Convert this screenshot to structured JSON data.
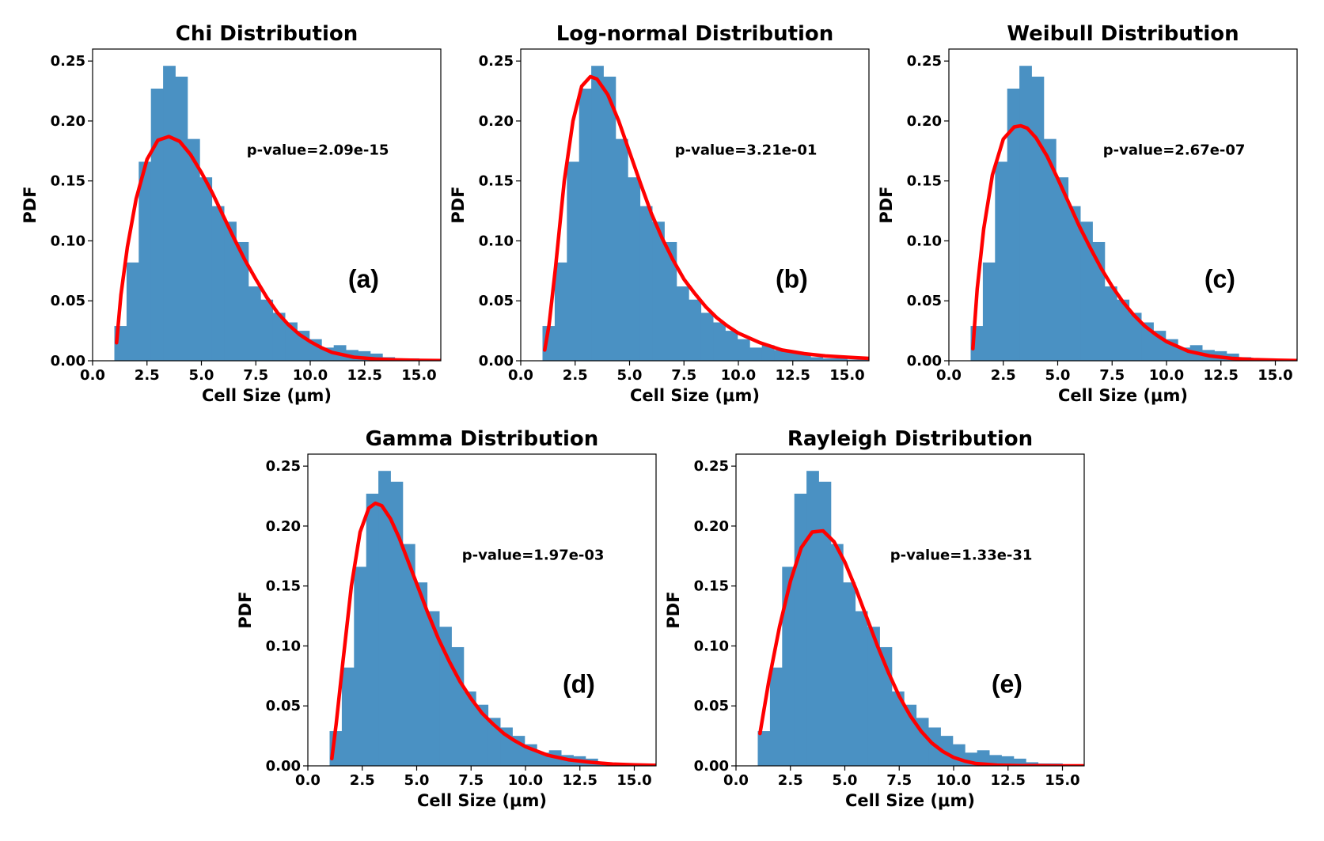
{
  "figure": {
    "xticks": [
      "0.0",
      "2.5",
      "5.0",
      "7.5",
      "10.0",
      "12.5",
      "15.0"
    ],
    "yticks": [
      "0.00",
      "0.05",
      "0.10",
      "0.15",
      "0.20",
      "0.25"
    ]
  },
  "chart_data": [
    {
      "type": "bar",
      "title": "Chi Distribution",
      "xlabel": "Cell Size (μm)",
      "ylabel": "PDF",
      "xlim": [
        0,
        16
      ],
      "ylim": [
        0,
        0.26
      ],
      "annotation": "p-value=2.09e-15",
      "panel_label": "(a)",
      "bin_edges": [
        1.0,
        1.56,
        2.12,
        2.68,
        3.24,
        3.8,
        4.36,
        4.92,
        5.48,
        6.04,
        6.6,
        7.16,
        7.72,
        8.28,
        8.84,
        9.4,
        9.96,
        10.52,
        11.08,
        11.64,
        12.2,
        12.76,
        13.32,
        13.88,
        14.44,
        15.0,
        15.56,
        16.0
      ],
      "values": [
        0.029,
        0.082,
        0.166,
        0.227,
        0.246,
        0.237,
        0.185,
        0.153,
        0.129,
        0.116,
        0.099,
        0.062,
        0.051,
        0.04,
        0.032,
        0.025,
        0.018,
        0.011,
        0.013,
        0.009,
        0.008,
        0.006,
        0.003,
        0.002,
        0.002,
        0.001,
        0.001
      ],
      "series": [
        {
          "name": "",
          "color": "#ff0000",
          "x": [
            1.1,
            1.3,
            1.6,
            2.0,
            2.5,
            3.0,
            3.5,
            4.0,
            4.5,
            5.0,
            5.5,
            6.0,
            6.5,
            7.0,
            7.5,
            8.0,
            8.5,
            9.0,
            9.5,
            10.0,
            10.5,
            11.0,
            11.5,
            12.0,
            13.0,
            14.0,
            15.0,
            16.0
          ],
          "y": [
            0.015,
            0.055,
            0.095,
            0.135,
            0.168,
            0.184,
            0.187,
            0.183,
            0.172,
            0.157,
            0.14,
            0.121,
            0.102,
            0.084,
            0.068,
            0.053,
            0.04,
            0.03,
            0.022,
            0.016,
            0.011,
            0.007,
            0.005,
            0.003,
            0.0015,
            0.0007,
            0.0003,
            0.0001
          ]
        }
      ]
    },
    {
      "type": "bar",
      "title": "Log-normal Distribution",
      "xlabel": "Cell Size (μm)",
      "ylabel": "PDF",
      "xlim": [
        0,
        16
      ],
      "ylim": [
        0,
        0.26
      ],
      "annotation": "p-value=3.21e-01",
      "panel_label": "(b)",
      "bin_edges": [
        1.0,
        1.56,
        2.12,
        2.68,
        3.24,
        3.8,
        4.36,
        4.92,
        5.48,
        6.04,
        6.6,
        7.16,
        7.72,
        8.28,
        8.84,
        9.4,
        9.96,
        10.52,
        11.08,
        11.64,
        12.2,
        12.76,
        13.32,
        13.88,
        14.44,
        15.0,
        15.56,
        16.0
      ],
      "values": [
        0.029,
        0.082,
        0.166,
        0.227,
        0.246,
        0.237,
        0.185,
        0.153,
        0.129,
        0.116,
        0.099,
        0.062,
        0.051,
        0.04,
        0.032,
        0.025,
        0.018,
        0.011,
        0.013,
        0.009,
        0.008,
        0.006,
        0.003,
        0.002,
        0.002,
        0.001,
        0.001
      ],
      "series": [
        {
          "name": "",
          "color": "#ff0000",
          "x": [
            1.1,
            1.3,
            1.6,
            2.0,
            2.4,
            2.8,
            3.2,
            3.5,
            4.0,
            4.5,
            5.0,
            5.5,
            6.0,
            6.5,
            7.0,
            7.5,
            8.0,
            8.5,
            9.0,
            9.5,
            10.0,
            11.0,
            12.0,
            13.0,
            14.0,
            15.0,
            16.0
          ],
          "y": [
            0.009,
            0.03,
            0.078,
            0.15,
            0.2,
            0.229,
            0.237,
            0.235,
            0.222,
            0.2,
            0.174,
            0.148,
            0.123,
            0.102,
            0.084,
            0.068,
            0.056,
            0.045,
            0.036,
            0.029,
            0.023,
            0.015,
            0.009,
            0.006,
            0.004,
            0.003,
            0.002
          ]
        }
      ]
    },
    {
      "type": "bar",
      "title": "Weibull Distribution",
      "xlabel": "Cell Size (μm)",
      "ylabel": "PDF",
      "xlim": [
        0,
        16
      ],
      "ylim": [
        0,
        0.26
      ],
      "annotation": "p-value=2.67e-07",
      "panel_label": "(c)",
      "bin_edges": [
        1.0,
        1.56,
        2.12,
        2.68,
        3.24,
        3.8,
        4.36,
        4.92,
        5.48,
        6.04,
        6.6,
        7.16,
        7.72,
        8.28,
        8.84,
        9.4,
        9.96,
        10.52,
        11.08,
        11.64,
        12.2,
        12.76,
        13.32,
        13.88,
        14.44,
        15.0,
        15.56,
        16.0
      ],
      "values": [
        0.029,
        0.082,
        0.166,
        0.227,
        0.246,
        0.237,
        0.185,
        0.153,
        0.129,
        0.116,
        0.099,
        0.062,
        0.051,
        0.04,
        0.032,
        0.025,
        0.018,
        0.011,
        0.013,
        0.009,
        0.008,
        0.006,
        0.003,
        0.002,
        0.002,
        0.001,
        0.001
      ],
      "series": [
        {
          "name": "",
          "color": "#ff0000",
          "x": [
            1.1,
            1.3,
            1.6,
            2.0,
            2.5,
            3.0,
            3.3,
            3.6,
            4.0,
            4.5,
            5.0,
            5.5,
            6.0,
            6.5,
            7.0,
            7.5,
            8.0,
            8.5,
            9.0,
            9.5,
            10.0,
            10.5,
            11.0,
            12.0,
            13.0,
            14.0,
            15.0,
            16.0
          ],
          "y": [
            0.01,
            0.06,
            0.11,
            0.155,
            0.185,
            0.195,
            0.196,
            0.194,
            0.186,
            0.171,
            0.152,
            0.132,
            0.112,
            0.094,
            0.077,
            0.062,
            0.049,
            0.038,
            0.029,
            0.022,
            0.016,
            0.012,
            0.008,
            0.004,
            0.002,
            0.001,
            0.0005,
            0.0002
          ]
        }
      ]
    },
    {
      "type": "bar",
      "title": "Gamma Distribution",
      "xlabel": "Cell Size (μm)",
      "ylabel": "PDF",
      "xlim": [
        0,
        16
      ],
      "ylim": [
        0,
        0.26
      ],
      "annotation": "p-value=1.97e-03",
      "panel_label": "(d)",
      "bin_edges": [
        1.0,
        1.56,
        2.12,
        2.68,
        3.24,
        3.8,
        4.36,
        4.92,
        5.48,
        6.04,
        6.6,
        7.16,
        7.72,
        8.28,
        8.84,
        9.4,
        9.96,
        10.52,
        11.08,
        11.64,
        12.2,
        12.76,
        13.32,
        13.88,
        14.44,
        15.0,
        15.56,
        16.0
      ],
      "values": [
        0.029,
        0.082,
        0.166,
        0.227,
        0.246,
        0.237,
        0.185,
        0.153,
        0.129,
        0.116,
        0.099,
        0.062,
        0.051,
        0.04,
        0.032,
        0.025,
        0.018,
        0.011,
        0.013,
        0.009,
        0.008,
        0.006,
        0.003,
        0.002,
        0.002,
        0.001,
        0.001
      ],
      "series": [
        {
          "name": "",
          "color": "#ff0000",
          "x": [
            1.1,
            1.3,
            1.6,
            2.0,
            2.4,
            2.8,
            3.1,
            3.4,
            3.8,
            4.2,
            4.6,
            5.0,
            5.5,
            6.0,
            6.5,
            7.0,
            7.5,
            8.0,
            8.5,
            9.0,
            9.5,
            10.0,
            11.0,
            12.0,
            13.0,
            14.0,
            15.0,
            16.0
          ],
          "y": [
            0.006,
            0.035,
            0.085,
            0.15,
            0.195,
            0.215,
            0.219,
            0.217,
            0.206,
            0.19,
            0.171,
            0.152,
            0.128,
            0.106,
            0.087,
            0.07,
            0.056,
            0.044,
            0.035,
            0.027,
            0.021,
            0.016,
            0.009,
            0.005,
            0.003,
            0.0015,
            0.0008,
            0.0004
          ]
        }
      ]
    },
    {
      "type": "bar",
      "title": "Rayleigh Distribution",
      "xlabel": "Cell Size (μm)",
      "ylabel": "PDF",
      "xlim": [
        0,
        16
      ],
      "ylim": [
        0,
        0.26
      ],
      "annotation": "p-value=1.33e-31",
      "panel_label": "(e)",
      "bin_edges": [
        1.0,
        1.56,
        2.12,
        2.68,
        3.24,
        3.8,
        4.36,
        4.92,
        5.48,
        6.04,
        6.6,
        7.16,
        7.72,
        8.28,
        8.84,
        9.4,
        9.96,
        10.52,
        11.08,
        11.64,
        12.2,
        12.76,
        13.32,
        13.88,
        14.44,
        15.0,
        15.56,
        16.0
      ],
      "values": [
        0.029,
        0.082,
        0.166,
        0.227,
        0.246,
        0.237,
        0.185,
        0.153,
        0.129,
        0.116,
        0.099,
        0.062,
        0.051,
        0.04,
        0.032,
        0.025,
        0.018,
        0.011,
        0.013,
        0.009,
        0.008,
        0.006,
        0.003,
        0.002,
        0.002,
        0.001,
        0.001
      ],
      "series": [
        {
          "name": "",
          "color": "#ff0000",
          "x": [
            1.1,
            1.5,
            2.0,
            2.5,
            3.0,
            3.5,
            4.0,
            4.5,
            5.0,
            5.5,
            6.0,
            6.5,
            7.0,
            7.5,
            8.0,
            8.5,
            9.0,
            9.5,
            10.0,
            10.5,
            11.0,
            12.0,
            13.0,
            14.0,
            15.0,
            16.0
          ],
          "y": [
            0.027,
            0.07,
            0.116,
            0.154,
            0.182,
            0.195,
            0.196,
            0.187,
            0.17,
            0.148,
            0.124,
            0.1,
            0.078,
            0.058,
            0.042,
            0.029,
            0.019,
            0.012,
            0.007,
            0.004,
            0.002,
            0.0006,
            0.0002,
            0.0001,
            0.0,
            0.0
          ]
        }
      ]
    }
  ]
}
